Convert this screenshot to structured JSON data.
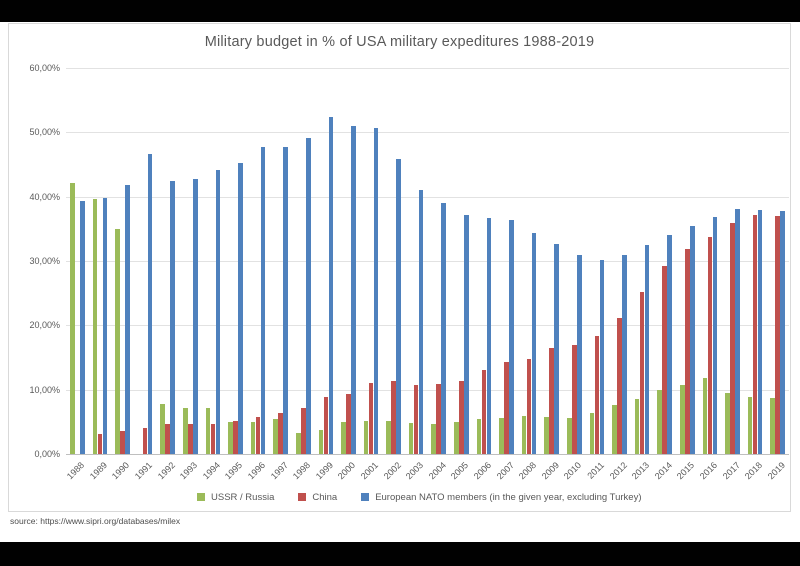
{
  "source_text": "source: https://www.sipri.org/databases/milex",
  "chart_data": {
    "type": "bar",
    "title": "Military budget in % of USA military expeditures 1988-2019",
    "xlabel": "",
    "ylabel": "",
    "ylim": [
      0,
      60
    ],
    "ytick_step": 10,
    "ytick_labels": [
      "0,00%",
      "10,00%",
      "20,00%",
      "30,00%",
      "40,00%",
      "50,00%",
      "60,00%"
    ],
    "grid": true,
    "legend_position": "bottom",
    "categories": [
      "1988",
      "1989",
      "1990",
      "1991",
      "1992",
      "1993",
      "1994",
      "1995",
      "1996",
      "1997",
      "1998",
      "1999",
      "2000",
      "2001",
      "2002",
      "2003",
      "2004",
      "2005",
      "2006",
      "2007",
      "2008",
      "2009",
      "2010",
      "2011",
      "2012",
      "2013",
      "2014",
      "2015",
      "2016",
      "2017",
      "2018",
      "2019"
    ],
    "series": [
      {
        "name": "USSR / Russia",
        "color": "#9BBB59",
        "values": [
          42.2,
          39.6,
          34.9,
          null,
          7.8,
          7.2,
          7.1,
          5.0,
          4.9,
          5.4,
          3.3,
          3.7,
          4.9,
          5.2,
          5.2,
          4.8,
          4.6,
          4.9,
          5.4,
          5.6,
          5.9,
          5.7,
          5.6,
          6.3,
          7.6,
          8.6,
          9.9,
          10.8,
          11.8,
          9.5,
          8.9,
          8.7
        ]
      },
      {
        "name": "China",
        "color": "#C0504D",
        "values": [
          null,
          3.1,
          3.5,
          4.1,
          4.7,
          4.6,
          4.6,
          5.2,
          5.8,
          6.3,
          7.2,
          8.9,
          9.3,
          11.0,
          11.3,
          10.7,
          10.9,
          11.4,
          13.1,
          14.3,
          14.7,
          16.5,
          16.9,
          18.4,
          21.2,
          25.2,
          29.2,
          31.8,
          33.7,
          35.9,
          37.2,
          37.0
        ]
      },
      {
        "name": "European NATO members (in the given year, excluding Turkey)",
        "color": "#4F81BD",
        "values": [
          39.4,
          39.8,
          41.8,
          46.6,
          42.4,
          42.7,
          44.1,
          45.2,
          47.8,
          47.7,
          49.1,
          52.4,
          51.0,
          50.7,
          45.9,
          41.1,
          39.0,
          37.2,
          36.7,
          36.3,
          34.4,
          32.6,
          30.9,
          30.1,
          31.0,
          32.5,
          34.1,
          35.4,
          36.8,
          38.1,
          38.0,
          37.7
        ]
      }
    ]
  }
}
